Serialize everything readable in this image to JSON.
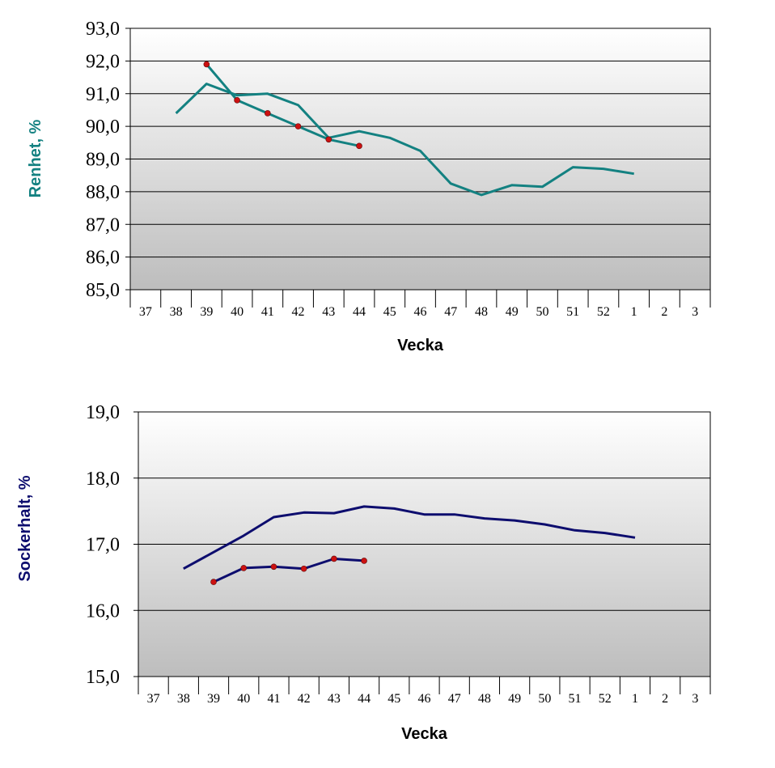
{
  "chart_data": [
    {
      "type": "line",
      "ylabel": "Renhet, %",
      "xlabel": "Vecka",
      "categories": [
        "37",
        "38",
        "39",
        "40",
        "41",
        "42",
        "43",
        "44",
        "45",
        "46",
        "47",
        "48",
        "49",
        "50",
        "51",
        "52",
        "1",
        "2",
        "3"
      ],
      "ylim": [
        85.0,
        93.0
      ],
      "yticks": [
        "85,0",
        "86,0",
        "87,0",
        "88,0",
        "89,0",
        "90,0",
        "91,0",
        "92,0",
        "93,0"
      ],
      "grid": true,
      "series_color": "#138181",
      "marker_color": "#cc1111",
      "series": [
        {
          "values": [
            null,
            90.4,
            91.3,
            90.95,
            91.0,
            90.65,
            89.65,
            89.85,
            89.65,
            89.25,
            88.25,
            87.9,
            88.2,
            88.15,
            88.75,
            88.7,
            88.55,
            null,
            null
          ],
          "markers": false
        },
        {
          "values": [
            null,
            null,
            91.9,
            90.8,
            90.4,
            90.0,
            89.6,
            89.4,
            null,
            null,
            null,
            null,
            null,
            null,
            null,
            null,
            null,
            null,
            null
          ],
          "markers": true
        }
      ]
    },
    {
      "type": "line",
      "ylabel": "Sockerhalt, %",
      "xlabel": "Vecka",
      "categories": [
        "37",
        "38",
        "39",
        "40",
        "41",
        "42",
        "43",
        "44",
        "45",
        "46",
        "47",
        "48",
        "49",
        "50",
        "51",
        "52",
        "1",
        "2",
        "3"
      ],
      "ylim": [
        15.0,
        19.0
      ],
      "yticks": [
        "15,0",
        "16,0",
        "17,0",
        "18,0",
        "19,0"
      ],
      "grid": true,
      "series_color": "#0d0d6e",
      "marker_color": "#cc1111",
      "series": [
        {
          "values": [
            null,
            16.63,
            16.88,
            17.13,
            17.41,
            17.48,
            17.47,
            17.57,
            17.54,
            17.45,
            17.45,
            17.39,
            17.36,
            17.3,
            17.21,
            17.17,
            17.1,
            null,
            null
          ],
          "markers": false
        },
        {
          "values": [
            null,
            null,
            16.43,
            16.64,
            16.66,
            16.63,
            16.78,
            16.75,
            null,
            null,
            null,
            null,
            null,
            null,
            null,
            null,
            null,
            null,
            null
          ],
          "markers": true
        }
      ]
    }
  ]
}
